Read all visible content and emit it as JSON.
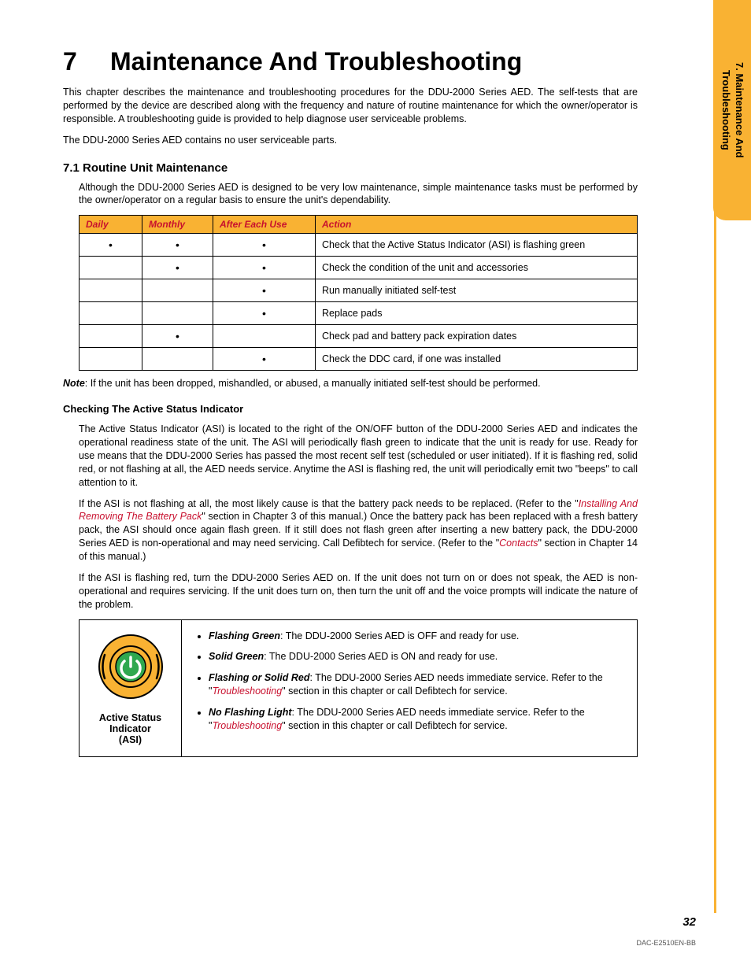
{
  "sideTab": {
    "line1": "7. Maintenance And",
    "line2": "Troubleshooting"
  },
  "chapter": {
    "number": "7",
    "title": "Maintenance And Troubleshooting"
  },
  "intro1": "This chapter describes the maintenance and troubleshooting procedures for the DDU-2000 Series AED. The self-tests that are performed by the device are described along with the frequency and nature of routine maintenance for which the owner/operator is responsible. A troubleshooting guide is provided to help diagnose user serviceable problems.",
  "intro2": "The DDU-2000 Series AED contains no user serviceable parts.",
  "section71": {
    "title": "7.1  Routine Unit Maintenance",
    "lead": "Although the DDU-2000 Series AED is designed to be very low maintenance, simple maintenance tasks must be performed by the owner/operator on a regular basis to ensure the unit's dependability."
  },
  "table": {
    "headers": [
      "Daily",
      "Monthly",
      "After Each Use",
      "Action"
    ],
    "header_bg": "#f9b233",
    "header_color": "#c8102e",
    "border_color": "#000000",
    "rows": [
      {
        "daily": true,
        "monthly": true,
        "after": true,
        "action": "Check that the Active Status Indicator (ASI) is flashing green"
      },
      {
        "daily": false,
        "monthly": true,
        "after": true,
        "action": "Check the condition of the unit and accessories"
      },
      {
        "daily": false,
        "monthly": false,
        "after": true,
        "action": "Run manually initiated self-test"
      },
      {
        "daily": false,
        "monthly": false,
        "after": true,
        "action": "Replace pads"
      },
      {
        "daily": false,
        "monthly": true,
        "after": false,
        "action": "Check pad and battery pack expiration dates"
      },
      {
        "daily": false,
        "monthly": false,
        "after": true,
        "action": "Check the DDC card, if one was installed"
      }
    ]
  },
  "note": {
    "label": "Note",
    "text": ": If the unit has been dropped, mishandled, or abused, a manually initiated self-test should be performed."
  },
  "subhead": "Checking The Active Status Indicator",
  "para1": "The Active Status Indicator (ASI) is located to the right of the ON/OFF button of the DDU-2000 Series AED and indicates the operational readiness state of the unit.  The ASI will periodically flash green to indicate that the unit is ready for use.  Ready for use means that the DDU-2000 Series has passed the most recent self test (scheduled or user initiated).  If it is flashing red, solid red, or not flashing at all, the AED needs service.  Anytime the ASI is flashing red, the unit will periodically emit two \"beeps\" to call attention to it.",
  "para2a": "If the ASI is not flashing at all, the most likely cause is that the battery pack needs to be replaced. (Refer to the \"",
  "para2link1": "Installing And Removing The Battery Pack",
  "para2b": "\" section in Chapter 3 of this manual.)  Once the battery pack has been replaced with a fresh battery pack, the ASI should once again flash green.  If it still does not flash green after inserting a new battery pack, the DDU-2000 Series AED is non-operational and may need servicing.  Call Defibtech for service. (Refer to the \"",
  "para2link2": "Contacts",
  "para2c": "\" section in Chapter 14 of this manual.)",
  "para3": "If the ASI is flashing red, turn the DDU-2000 Series AED on.  If the unit does not turn on or does not speak, the AED is non-operational and requires servicing.  If the unit does turn on, then turn the unit off and the voice prompts will indicate the nature of the problem.",
  "asiBox": {
    "caption1": "Active Status",
    "caption2": "Indicator",
    "caption3": "(ASI)",
    "icon": {
      "outer_fill": "#f9b233",
      "outer_stroke": "#000000",
      "inner_fill": "#2fa84f",
      "power_stroke": "#ffffff"
    },
    "items": [
      {
        "state": "Flashing Green",
        "text": ": The DDU-2000 Series AED is OFF and ready for use."
      },
      {
        "state": "Solid Green",
        "text": ": The DDU-2000 Series AED is ON and ready for use."
      },
      {
        "state": "Flashing or Solid Red",
        "text": ": The DDU-2000 Series AED needs immediate service. Refer to the \"",
        "link": "Troubleshooting",
        "tail": "\" section in this chapter or call Defibtech for service."
      },
      {
        "state": "No Flashing Light",
        "text": ": The DDU-2000 Series AED needs immediate service. Refer to the \"",
        "link": "Troubleshooting",
        "tail": "\" section in this chapter or call Defibtech for service."
      }
    ]
  },
  "pageNumber": "32",
  "docCode": "DAC-E2510EN-BB",
  "colors": {
    "accent": "#f9b233",
    "link": "#c8102e",
    "text": "#000000",
    "bg": "#ffffff"
  }
}
